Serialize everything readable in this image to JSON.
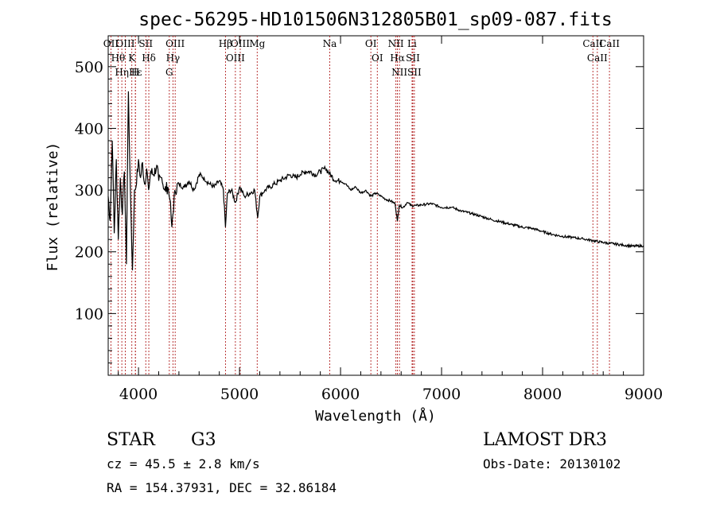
{
  "chart_data": {
    "type": "line",
    "title": "spec-56295-HD101506N312805B01_sp09-087.fits",
    "xlabel": "Wavelength (Å)",
    "ylabel": "Flux (relative)",
    "xlim": [
      3700,
      9000
    ],
    "ylim": [
      0,
      550
    ],
    "xticks": [
      4000,
      5000,
      6000,
      7000,
      8000,
      9000
    ],
    "yticks": [
      100,
      200,
      300,
      400,
      500
    ],
    "grid": false,
    "series": [
      {
        "name": "spectrum",
        "color": "#000000",
        "x": [
          3700,
          3720,
          3740,
          3760,
          3780,
          3800,
          3820,
          3840,
          3860,
          3880,
          3900,
          3920,
          3940,
          3960,
          3980,
          4000,
          4020,
          4040,
          4060,
          4080,
          4100,
          4120,
          4150,
          4180,
          4200,
          4230,
          4260,
          4290,
          4310,
          4330,
          4340,
          4360,
          4400,
          4450,
          4500,
          4550,
          4600,
          4650,
          4700,
          4750,
          4800,
          4840,
          4861,
          4880,
          4920,
          4960,
          5000,
          5050,
          5100,
          5150,
          5180,
          5200,
          5250,
          5300,
          5350,
          5400,
          5450,
          5500,
          5550,
          5600,
          5650,
          5700,
          5750,
          5800,
          5850,
          5900,
          5950,
          6000,
          6050,
          6100,
          6150,
          6200,
          6250,
          6300,
          6350,
          6400,
          6450,
          6500,
          6540,
          6563,
          6580,
          6620,
          6660,
          6700,
          6750,
          6800,
          6900,
          7000,
          7100,
          7200,
          7300,
          7400,
          7500,
          7600,
          7700,
          7800,
          7900,
          8000,
          8100,
          8200,
          8300,
          8400,
          8500,
          8600,
          8700,
          8800,
          8900,
          9000
        ],
        "values": [
          290,
          250,
          380,
          230,
          350,
          220,
          320,
          260,
          330,
          180,
          460,
          300,
          170,
          300,
          310,
          350,
          320,
          345,
          310,
          335,
          300,
          330,
          325,
          340,
          315,
          320,
          300,
          305,
          285,
          240,
          260,
          300,
          310,
          305,
          315,
          300,
          325,
          320,
          310,
          305,
          315,
          300,
          240,
          295,
          300,
          280,
          305,
          290,
          295,
          300,
          255,
          290,
          300,
          305,
          310,
          315,
          320,
          325,
          320,
          325,
          330,
          330,
          325,
          330,
          335,
          325,
          315,
          315,
          310,
          300,
          305,
          295,
          300,
          290,
          295,
          290,
          285,
          282,
          278,
          250,
          275,
          272,
          280,
          275,
          275,
          276,
          278,
          272,
          272,
          266,
          262,
          257,
          252,
          248,
          244,
          240,
          238,
          233,
          228,
          225,
          223,
          221,
          218,
          215,
          213,
          211,
          209,
          210
        ]
      }
    ],
    "lines": [
      {
        "name": "OII",
        "wave": 3727
      },
      {
        "name": "Hθ",
        "wave": 3798
      },
      {
        "name": "OIII",
        "wave": 3869
      },
      {
        "name": "Hη",
        "wave": 3835
      },
      {
        "name": "K",
        "wave": 3934
      },
      {
        "name": "H",
        "wave": 3969
      },
      {
        "name": "Hε",
        "wave": 3970
      },
      {
        "name": "SII",
        "wave": 4072
      },
      {
        "name": "Hδ",
        "wave": 4102
      },
      {
        "name": "OIII",
        "wave": 4363
      },
      {
        "name": "Hγ",
        "wave": 4341
      },
      {
        "name": "G",
        "wave": 4305
      },
      {
        "name": "Hβ",
        "wave": 4861
      },
      {
        "name": "OIII",
        "wave": 4959
      },
      {
        "name": "OIII",
        "wave": 5007
      },
      {
        "name": "Mg",
        "wave": 5175
      },
      {
        "name": "Na",
        "wave": 5893
      },
      {
        "name": "OI",
        "wave": 6300
      },
      {
        "name": "OI",
        "wave": 6364
      },
      {
        "name": "NII",
        "wave": 6548
      },
      {
        "name": "Hα",
        "wave": 6563
      },
      {
        "name": "NII",
        "wave": 6583
      },
      {
        "name": "Li",
        "wave": 6708
      },
      {
        "name": "SII",
        "wave": 6716
      },
      {
        "name": "SII",
        "wave": 6731
      },
      {
        "name": "CaII",
        "wave": 8498
      },
      {
        "name": "CaII",
        "wave": 8542
      },
      {
        "name": "CaII",
        "wave": 8662
      }
    ],
    "line_color": "#b22222"
  },
  "info": {
    "class": "STAR",
    "subclass": "G3",
    "survey": "LAMOST DR3",
    "cz": "cz = 45.5 ± 2.8 km/s",
    "obs_date": "Obs-Date: 20130102",
    "radec": "RA = 154.37931, DEC =  32.86184"
  }
}
